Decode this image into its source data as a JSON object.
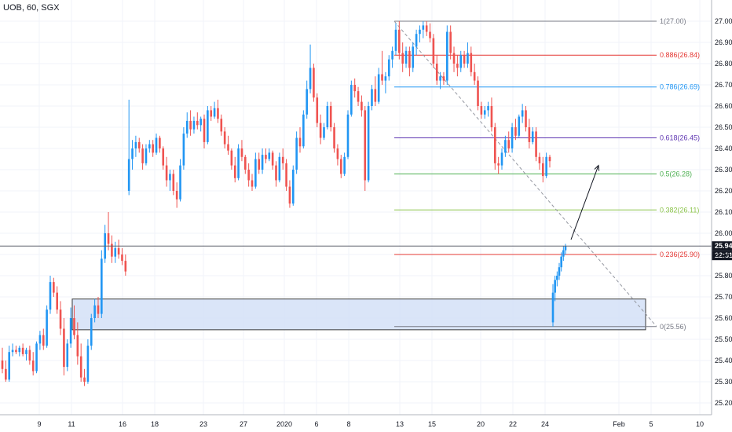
{
  "symbol": "UOB, 60, SGX",
  "colors": {
    "up": "#2196f3",
    "down": "#ef5350",
    "grid": "#f0f3fa",
    "axis": "#b2b5be",
    "zone_fill": "#d4e0f7",
    "zone_border": "#3b3b3b",
    "trend": "#9598a1",
    "price_line": "#5d606b",
    "price_tag": "#131722"
  },
  "chart_data": {
    "type": "candlestick",
    "y_axis": {
      "min": 25.15,
      "max": 27.1,
      "ticks": [
        "27.00",
        "26.90",
        "26.80",
        "26.70",
        "26.60",
        "26.50",
        "26.40",
        "26.30",
        "26.20",
        "26.10",
        "26.00",
        "25.90",
        "25.80",
        "25.70",
        "25.60",
        "25.50",
        "25.40",
        "25.30",
        "25.20"
      ]
    },
    "x_axis": {
      "ticks": [
        "9",
        "11",
        "16",
        "18",
        "23",
        "27",
        "2020",
        "6",
        "8",
        "13",
        "15",
        "20",
        "22",
        "24",
        "Feb",
        "5",
        "10"
      ]
    },
    "current_price": "25.94",
    "countdown": "22:31",
    "fibonacci": [
      {
        "ratio": "1",
        "price": 27.0,
        "label": "1(27.00)",
        "color": "#787b86"
      },
      {
        "ratio": "0.886",
        "price": 26.84,
        "label": "0.886(26.84)",
        "color": "#e53935"
      },
      {
        "ratio": "0.786",
        "price": 26.69,
        "label": "0.786(26.69)",
        "color": "#2196f3"
      },
      {
        "ratio": "0.618",
        "price": 26.45,
        "label": "0.618(26.45)",
        "color": "#5e35b1"
      },
      {
        "ratio": "0.5",
        "price": 26.28,
        "label": "0.5(26.28)",
        "color": "#4caf50"
      },
      {
        "ratio": "0.382",
        "price": 26.11,
        "label": "0.382(26.11)",
        "color": "#8bc34a"
      },
      {
        "ratio": "0.236",
        "price": 25.9,
        "label": "0.236(25.90)",
        "color": "#e53935"
      },
      {
        "ratio": "0",
        "price": 25.56,
        "label": "0(25.56)",
        "color": "#787b86"
      }
    ],
    "zone": {
      "low": 25.545,
      "high": 25.69
    },
    "series": [
      {
        "o": 25.4,
        "h": 25.46,
        "l": 25.34,
        "c": 25.36
      },
      {
        "o": 25.36,
        "h": 25.4,
        "l": 25.3,
        "c": 25.31
      },
      {
        "o": 25.31,
        "h": 25.47,
        "l": 25.3,
        "c": 25.44
      },
      {
        "o": 25.44,
        "h": 25.48,
        "l": 25.42,
        "c": 25.45
      },
      {
        "o": 25.45,
        "h": 25.47,
        "l": 25.43,
        "c": 25.44
      },
      {
        "o": 25.44,
        "h": 25.47,
        "l": 25.42,
        "c": 25.46
      },
      {
        "o": 25.46,
        "h": 25.48,
        "l": 25.42,
        "c": 25.43
      },
      {
        "o": 25.43,
        "h": 25.46,
        "l": 25.4,
        "c": 25.45
      },
      {
        "o": 25.45,
        "h": 25.47,
        "l": 25.38,
        "c": 25.4
      },
      {
        "o": 25.4,
        "h": 25.44,
        "l": 25.33,
        "c": 25.35
      },
      {
        "o": 25.35,
        "h": 25.49,
        "l": 25.34,
        "c": 25.48
      },
      {
        "o": 25.48,
        "h": 25.54,
        "l": 25.45,
        "c": 25.52
      },
      {
        "o": 25.52,
        "h": 25.55,
        "l": 25.45,
        "c": 25.47
      },
      {
        "o": 25.47,
        "h": 25.66,
        "l": 25.46,
        "c": 25.64
      },
      {
        "o": 25.64,
        "h": 25.8,
        "l": 25.62,
        "c": 25.77
      },
      {
        "o": 25.77,
        "h": 25.79,
        "l": 25.7,
        "c": 25.72
      },
      {
        "o": 25.72,
        "h": 25.75,
        "l": 25.62,
        "c": 25.64
      },
      {
        "o": 25.64,
        "h": 25.68,
        "l": 25.52,
        "c": 25.55
      },
      {
        "o": 25.55,
        "h": 25.6,
        "l": 25.33,
        "c": 25.37
      },
      {
        "o": 25.37,
        "h": 25.5,
        "l": 25.35,
        "c": 25.48
      },
      {
        "o": 25.48,
        "h": 25.65,
        "l": 25.46,
        "c": 25.6
      },
      {
        "o": 25.6,
        "h": 25.66,
        "l": 25.5,
        "c": 25.52
      },
      {
        "o": 25.52,
        "h": 25.58,
        "l": 25.38,
        "c": 25.42
      },
      {
        "o": 25.42,
        "h": 25.48,
        "l": 25.3,
        "c": 25.32
      },
      {
        "o": 25.32,
        "h": 25.36,
        "l": 25.28,
        "c": 25.3
      },
      {
        "o": 25.3,
        "h": 25.5,
        "l": 25.29,
        "c": 25.47
      },
      {
        "o": 25.47,
        "h": 25.62,
        "l": 25.45,
        "c": 25.6
      },
      {
        "o": 25.6,
        "h": 25.69,
        "l": 25.58,
        "c": 25.66
      },
      {
        "o": 25.66,
        "h": 25.7,
        "l": 25.6,
        "c": 25.62
      },
      {
        "o": 25.62,
        "h": 25.92,
        "l": 25.6,
        "c": 25.88
      },
      {
        "o": 25.88,
        "h": 26.04,
        "l": 25.86,
        "c": 26.0
      },
      {
        "o": 26.0,
        "h": 26.1,
        "l": 25.92,
        "c": 25.95
      },
      {
        "o": 25.95,
        "h": 25.99,
        "l": 25.86,
        "c": 25.89
      },
      {
        "o": 25.89,
        "h": 25.96,
        "l": 25.86,
        "c": 25.93
      },
      {
        "o": 25.93,
        "h": 25.97,
        "l": 25.88,
        "c": 25.9
      },
      {
        "o": 25.9,
        "h": 25.93,
        "l": 25.85,
        "c": 25.87
      },
      {
        "o": 25.87,
        "h": 25.9,
        "l": 25.8,
        "c": 25.82
      },
      {
        "o": 26.2,
        "h": 26.63,
        "l": 26.18,
        "c": 26.35
      },
      {
        "o": 26.35,
        "h": 26.44,
        "l": 26.3,
        "c": 26.4
      },
      {
        "o": 26.4,
        "h": 26.46,
        "l": 26.36,
        "c": 26.43
      },
      {
        "o": 26.43,
        "h": 26.45,
        "l": 26.38,
        "c": 26.4
      },
      {
        "o": 26.4,
        "h": 26.42,
        "l": 26.3,
        "c": 26.33
      },
      {
        "o": 26.33,
        "h": 26.42,
        "l": 26.32,
        "c": 26.4
      },
      {
        "o": 26.4,
        "h": 26.44,
        "l": 26.38,
        "c": 26.42
      },
      {
        "o": 26.42,
        "h": 26.44,
        "l": 26.36,
        "c": 26.38
      },
      {
        "o": 26.38,
        "h": 26.47,
        "l": 26.37,
        "c": 26.45
      },
      {
        "o": 26.45,
        "h": 26.46,
        "l": 26.38,
        "c": 26.4
      },
      {
        "o": 26.4,
        "h": 26.41,
        "l": 26.3,
        "c": 26.32
      },
      {
        "o": 26.32,
        "h": 26.36,
        "l": 26.22,
        "c": 26.25
      },
      {
        "o": 26.25,
        "h": 26.3,
        "l": 26.2,
        "c": 26.28
      },
      {
        "o": 26.28,
        "h": 26.3,
        "l": 26.18,
        "c": 26.2
      },
      {
        "o": 26.2,
        "h": 26.24,
        "l": 26.12,
        "c": 26.16
      },
      {
        "o": 26.16,
        "h": 26.35,
        "l": 26.15,
        "c": 26.32
      },
      {
        "o": 26.32,
        "h": 26.5,
        "l": 26.3,
        "c": 26.47
      },
      {
        "o": 26.47,
        "h": 26.57,
        "l": 26.45,
        "c": 26.53
      },
      {
        "o": 26.53,
        "h": 26.58,
        "l": 26.46,
        "c": 26.49
      },
      {
        "o": 26.49,
        "h": 26.55,
        "l": 26.47,
        "c": 26.53
      },
      {
        "o": 26.53,
        "h": 26.57,
        "l": 26.49,
        "c": 26.51
      },
      {
        "o": 26.51,
        "h": 26.55,
        "l": 26.48,
        "c": 26.54
      },
      {
        "o": 26.54,
        "h": 26.56,
        "l": 26.4,
        "c": 26.43
      },
      {
        "o": 26.43,
        "h": 26.6,
        "l": 26.42,
        "c": 26.58
      },
      {
        "o": 26.58,
        "h": 26.6,
        "l": 26.53,
        "c": 26.55
      },
      {
        "o": 26.55,
        "h": 26.62,
        "l": 26.54,
        "c": 26.59
      },
      {
        "o": 26.59,
        "h": 26.63,
        "l": 26.52,
        "c": 26.54
      },
      {
        "o": 26.54,
        "h": 26.56,
        "l": 26.46,
        "c": 26.48
      },
      {
        "o": 26.48,
        "h": 26.5,
        "l": 26.4,
        "c": 26.42
      },
      {
        "o": 26.42,
        "h": 26.46,
        "l": 26.37,
        "c": 26.39
      },
      {
        "o": 26.39,
        "h": 26.4,
        "l": 26.3,
        "c": 26.32
      },
      {
        "o": 26.32,
        "h": 26.36,
        "l": 26.24,
        "c": 26.26
      },
      {
        "o": 26.26,
        "h": 26.42,
        "l": 26.25,
        "c": 26.4
      },
      {
        "o": 26.4,
        "h": 26.44,
        "l": 26.34,
        "c": 26.36
      },
      {
        "o": 26.36,
        "h": 26.37,
        "l": 26.28,
        "c": 26.3
      },
      {
        "o": 26.3,
        "h": 26.33,
        "l": 26.22,
        "c": 26.25
      },
      {
        "o": 26.25,
        "h": 26.28,
        "l": 26.2,
        "c": 26.22
      },
      {
        "o": 26.22,
        "h": 26.38,
        "l": 26.21,
        "c": 26.35
      },
      {
        "o": 26.35,
        "h": 26.38,
        "l": 26.28,
        "c": 26.3
      },
      {
        "o": 26.3,
        "h": 26.4,
        "l": 26.28,
        "c": 26.37
      },
      {
        "o": 26.37,
        "h": 26.4,
        "l": 26.33,
        "c": 26.35
      },
      {
        "o": 26.35,
        "h": 26.4,
        "l": 26.34,
        "c": 26.38
      },
      {
        "o": 26.38,
        "h": 26.39,
        "l": 26.3,
        "c": 26.32
      },
      {
        "o": 26.32,
        "h": 26.34,
        "l": 26.22,
        "c": 26.25
      },
      {
        "o": 26.25,
        "h": 26.38,
        "l": 26.24,
        "c": 26.36
      },
      {
        "o": 26.36,
        "h": 26.4,
        "l": 26.3,
        "c": 26.33
      },
      {
        "o": 26.33,
        "h": 26.35,
        "l": 26.2,
        "c": 26.22
      },
      {
        "o": 26.22,
        "h": 26.25,
        "l": 26.12,
        "c": 26.14
      },
      {
        "o": 26.14,
        "h": 26.32,
        "l": 26.13,
        "c": 26.3
      },
      {
        "o": 26.3,
        "h": 26.48,
        "l": 26.28,
        "c": 26.45
      },
      {
        "o": 26.45,
        "h": 26.5,
        "l": 26.38,
        "c": 26.41
      },
      {
        "o": 26.41,
        "h": 26.58,
        "l": 26.4,
        "c": 26.56
      },
      {
        "o": 26.56,
        "h": 26.72,
        "l": 26.54,
        "c": 26.68
      },
      {
        "o": 26.68,
        "h": 26.89,
        "l": 26.66,
        "c": 26.78
      },
      {
        "o": 26.78,
        "h": 26.8,
        "l": 26.62,
        "c": 26.64
      },
      {
        "o": 26.64,
        "h": 26.66,
        "l": 26.5,
        "c": 26.52
      },
      {
        "o": 26.52,
        "h": 26.56,
        "l": 26.42,
        "c": 26.45
      },
      {
        "o": 26.45,
        "h": 26.52,
        "l": 26.44,
        "c": 26.5
      },
      {
        "o": 26.5,
        "h": 26.62,
        "l": 26.49,
        "c": 26.6
      },
      {
        "o": 26.6,
        "h": 26.62,
        "l": 26.48,
        "c": 26.5
      },
      {
        "o": 26.5,
        "h": 26.52,
        "l": 26.38,
        "c": 26.4
      },
      {
        "o": 26.4,
        "h": 26.42,
        "l": 26.32,
        "c": 26.35
      },
      {
        "o": 26.35,
        "h": 26.37,
        "l": 26.26,
        "c": 26.28
      },
      {
        "o": 26.28,
        "h": 26.38,
        "l": 26.27,
        "c": 26.36
      },
      {
        "o": 26.36,
        "h": 26.58,
        "l": 26.35,
        "c": 26.56
      },
      {
        "o": 26.56,
        "h": 26.72,
        "l": 26.55,
        "c": 26.7
      },
      {
        "o": 26.7,
        "h": 26.73,
        "l": 26.64,
        "c": 26.67
      },
      {
        "o": 26.67,
        "h": 26.69,
        "l": 26.6,
        "c": 26.62
      },
      {
        "o": 26.62,
        "h": 26.65,
        "l": 26.55,
        "c": 26.58
      },
      {
        "o": 26.58,
        "h": 26.6,
        "l": 26.2,
        "c": 26.25
      },
      {
        "o": 26.25,
        "h": 26.62,
        "l": 26.24,
        "c": 26.6
      },
      {
        "o": 26.6,
        "h": 26.7,
        "l": 26.58,
        "c": 26.68
      },
      {
        "o": 26.68,
        "h": 26.74,
        "l": 26.6,
        "c": 26.62
      },
      {
        "o": 26.62,
        "h": 26.78,
        "l": 26.61,
        "c": 26.75
      },
      {
        "o": 26.75,
        "h": 26.86,
        "l": 26.7,
        "c": 26.72
      },
      {
        "o": 26.72,
        "h": 26.76,
        "l": 26.66,
        "c": 26.74
      },
      {
        "o": 26.74,
        "h": 26.84,
        "l": 26.72,
        "c": 26.82
      },
      {
        "o": 26.82,
        "h": 26.88,
        "l": 26.78,
        "c": 26.86
      },
      {
        "o": 26.86,
        "h": 26.99,
        "l": 26.84,
        "c": 26.96
      },
      {
        "o": 26.96,
        "h": 27.0,
        "l": 26.82,
        "c": 26.85
      },
      {
        "o": 26.85,
        "h": 26.9,
        "l": 26.76,
        "c": 26.8
      },
      {
        "o": 26.8,
        "h": 26.88,
        "l": 26.78,
        "c": 26.86
      },
      {
        "o": 26.86,
        "h": 26.88,
        "l": 26.74,
        "c": 26.78
      },
      {
        "o": 26.78,
        "h": 26.9,
        "l": 26.76,
        "c": 26.88
      },
      {
        "o": 26.88,
        "h": 26.96,
        "l": 26.84,
        "c": 26.94
      },
      {
        "o": 26.94,
        "h": 26.98,
        "l": 26.9,
        "c": 26.96
      },
      {
        "o": 26.96,
        "h": 27.0,
        "l": 26.92,
        "c": 26.98
      },
      {
        "o": 26.98,
        "h": 27.0,
        "l": 26.93,
        "c": 26.95
      },
      {
        "o": 26.95,
        "h": 26.99,
        "l": 26.9,
        "c": 26.92
      },
      {
        "o": 26.92,
        "h": 26.94,
        "l": 26.78,
        "c": 26.8
      },
      {
        "o": 26.8,
        "h": 26.84,
        "l": 26.7,
        "c": 26.72
      },
      {
        "o": 26.72,
        "h": 26.76,
        "l": 26.68,
        "c": 26.74
      },
      {
        "o": 26.74,
        "h": 26.76,
        "l": 26.7,
        "c": 26.72
      },
      {
        "o": 26.72,
        "h": 26.98,
        "l": 26.7,
        "c": 26.95
      },
      {
        "o": 26.95,
        "h": 26.98,
        "l": 26.82,
        "c": 26.85
      },
      {
        "o": 26.85,
        "h": 26.88,
        "l": 26.76,
        "c": 26.8
      },
      {
        "o": 26.8,
        "h": 26.84,
        "l": 26.74,
        "c": 26.78
      },
      {
        "o": 26.78,
        "h": 26.86,
        "l": 26.76,
        "c": 26.84
      },
      {
        "o": 26.84,
        "h": 26.86,
        "l": 26.78,
        "c": 26.8
      },
      {
        "o": 26.8,
        "h": 26.9,
        "l": 26.78,
        "c": 26.85
      },
      {
        "o": 26.85,
        "h": 26.88,
        "l": 26.74,
        "c": 26.76
      },
      {
        "o": 26.76,
        "h": 26.8,
        "l": 26.7,
        "c": 26.72
      },
      {
        "o": 26.72,
        "h": 26.74,
        "l": 26.58,
        "c": 26.6
      },
      {
        "o": 26.6,
        "h": 26.62,
        "l": 26.54,
        "c": 26.56
      },
      {
        "o": 26.56,
        "h": 26.6,
        "l": 26.54,
        "c": 26.58
      },
      {
        "o": 26.58,
        "h": 26.62,
        "l": 26.55,
        "c": 26.6
      },
      {
        "o": 26.6,
        "h": 26.64,
        "l": 26.48,
        "c": 26.5
      },
      {
        "o": 26.5,
        "h": 26.52,
        "l": 26.3,
        "c": 26.33
      },
      {
        "o": 26.33,
        "h": 26.36,
        "l": 26.28,
        "c": 26.32
      },
      {
        "o": 26.32,
        "h": 26.4,
        "l": 26.3,
        "c": 26.38
      },
      {
        "o": 26.38,
        "h": 26.46,
        "l": 26.36,
        "c": 26.44
      },
      {
        "o": 26.44,
        "h": 26.48,
        "l": 26.38,
        "c": 26.4
      },
      {
        "o": 26.4,
        "h": 26.52,
        "l": 26.38,
        "c": 26.5
      },
      {
        "o": 26.5,
        "h": 26.54,
        "l": 26.44,
        "c": 26.46
      },
      {
        "o": 26.46,
        "h": 26.56,
        "l": 26.45,
        "c": 26.55
      },
      {
        "o": 26.55,
        "h": 26.61,
        "l": 26.52,
        "c": 26.58
      },
      {
        "o": 26.58,
        "h": 26.6,
        "l": 26.48,
        "c": 26.5
      },
      {
        "o": 26.5,
        "h": 26.54,
        "l": 26.4,
        "c": 26.43
      },
      {
        "o": 26.43,
        "h": 26.5,
        "l": 26.42,
        "c": 26.48
      },
      {
        "o": 26.48,
        "h": 26.5,
        "l": 26.34,
        "c": 26.36
      },
      {
        "o": 26.36,
        "h": 26.38,
        "l": 26.3,
        "c": 26.33
      },
      {
        "o": 26.33,
        "h": 26.36,
        "l": 26.24,
        "c": 26.27
      },
      {
        "o": 26.27,
        "h": 26.38,
        "l": 26.26,
        "c": 26.36
      },
      {
        "o": 26.36,
        "h": 26.37,
        "l": 26.31,
        "c": 26.34
      },
      {
        "o": 25.58,
        "h": 25.76,
        "l": 25.56,
        "c": 25.72
      },
      {
        "o": 25.72,
        "h": 25.8,
        "l": 25.68,
        "c": 25.78
      },
      {
        "o": 25.78,
        "h": 25.82,
        "l": 25.75,
        "c": 25.8
      },
      {
        "o": 25.8,
        "h": 25.86,
        "l": 25.78,
        "c": 25.84
      },
      {
        "o": 25.84,
        "h": 25.91,
        "l": 25.82,
        "c": 25.89
      },
      {
        "o": 25.89,
        "h": 25.94,
        "l": 25.87,
        "c": 25.92
      },
      {
        "o": 25.92,
        "h": 25.95,
        "l": 25.9,
        "c": 25.94
      }
    ]
  }
}
